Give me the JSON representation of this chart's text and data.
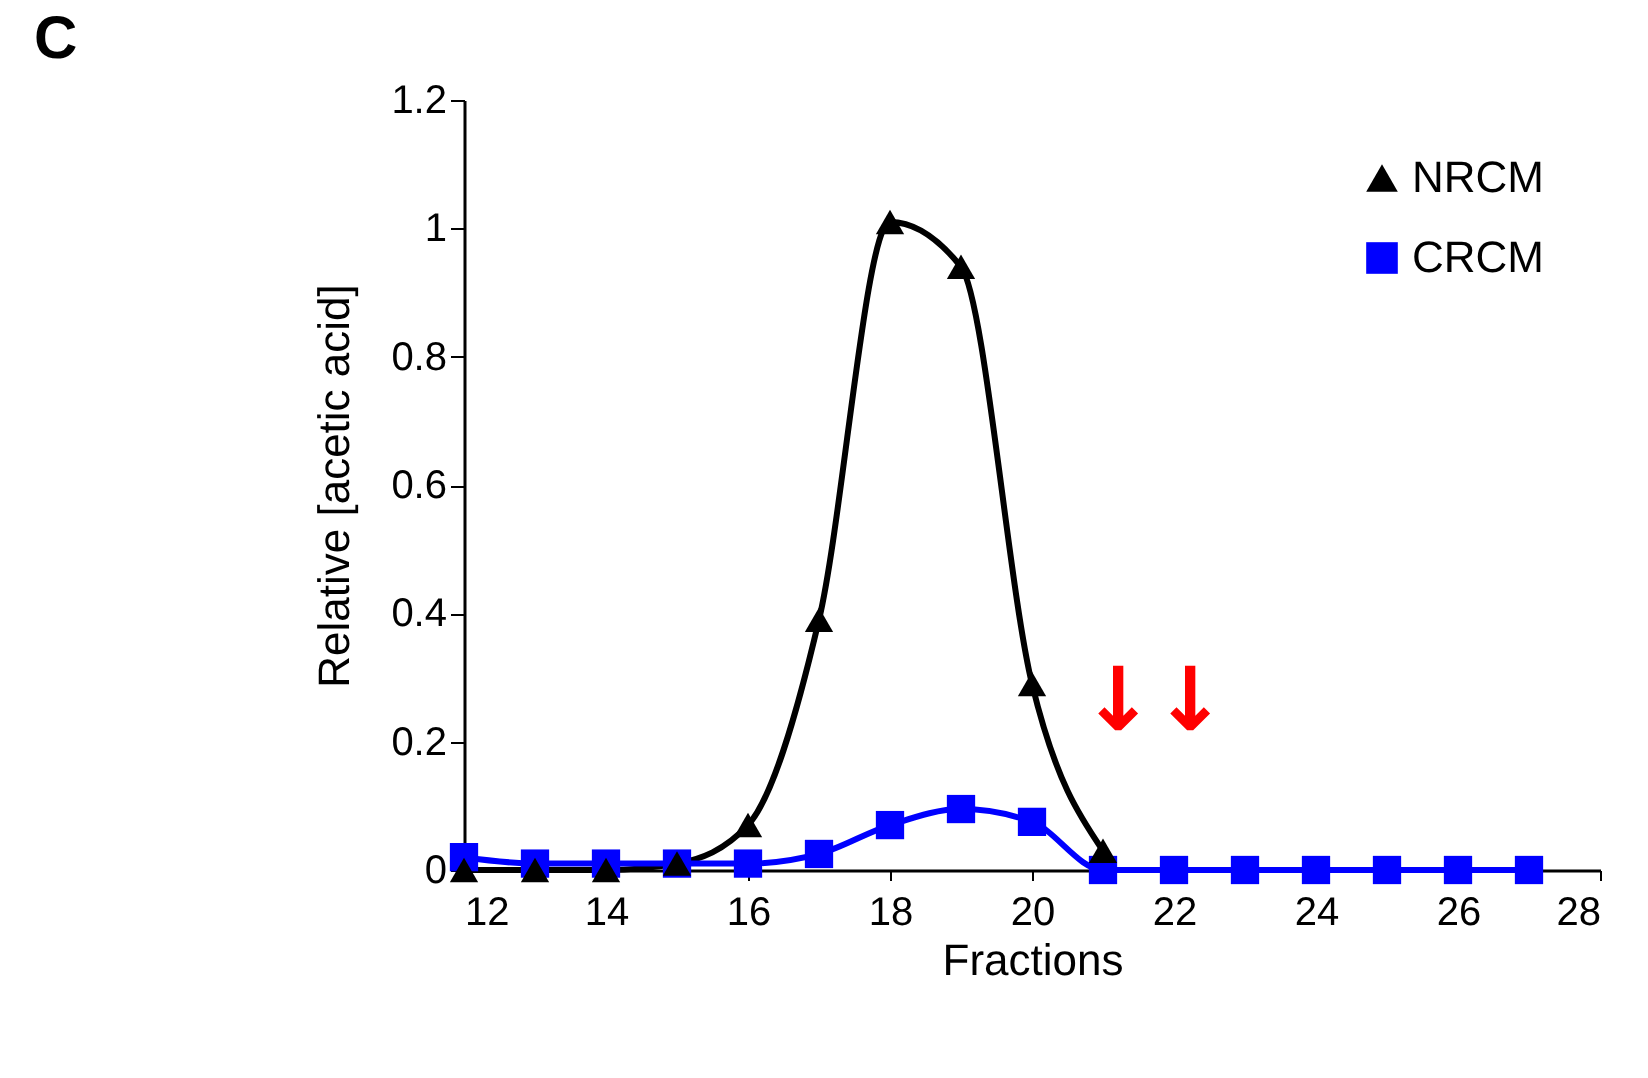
{
  "chart_data": {
    "type": "line",
    "xlabel": "Fractions",
    "ylabel": "Relative [acetic acid]",
    "x": [
      12,
      13,
      14,
      15,
      16,
      17,
      18,
      19,
      20,
      21,
      22,
      23,
      24,
      25,
      26,
      27
    ],
    "series": [
      {
        "name": "NRCM",
        "color": "#000000",
        "marker": "triangle",
        "x": [
          12,
          13,
          14,
          15,
          16,
          17,
          18,
          19,
          20,
          21
        ],
        "values": [
          0,
          0,
          0,
          0.01,
          0.07,
          0.39,
          1.01,
          0.94,
          0.29,
          0.03
        ]
      },
      {
        "name": "CRCM",
        "color": "#0000ff",
        "marker": "square",
        "values": [
          0.02,
          0.01,
          0.01,
          0.01,
          0.01,
          0.025,
          0.07,
          0.095,
          0.075,
          0,
          0,
          0,
          0,
          0,
          0,
          0
        ]
      }
    ],
    "xlim": [
      12,
      28
    ],
    "xticks": [
      12,
      14,
      16,
      18,
      20,
      22,
      24,
      26,
      28
    ],
    "ylim": [
      0,
      1.2
    ],
    "yticks": [
      0,
      0.2,
      0.4,
      0.6,
      0.8,
      1,
      1.2
    ],
    "grid": false,
    "legend": "top right",
    "line_style": "solid",
    "annotations": [
      "C",
      "↓",
      "↓"
    ]
  }
}
